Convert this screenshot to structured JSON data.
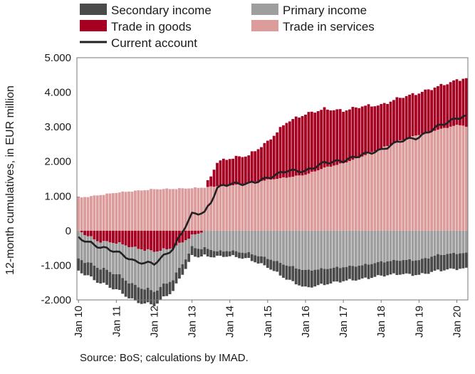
{
  "chart_data": {
    "type": "bar",
    "stacked": true,
    "ylabel": "12-month cumulatives, in EUR million",
    "ylim": [
      -2000,
      5000
    ],
    "yticks": [
      -2000,
      -1000,
      0,
      1000,
      2000,
      3000,
      4000,
      5000
    ],
    "ytick_labels": [
      "-2.000",
      "-1.000",
      "0",
      "1.000",
      "2.000",
      "3.000",
      "4.000",
      "5.000"
    ],
    "x_tick_labels": [
      "Jan 10",
      "Jan 11",
      "Jan 12",
      "Jan 13",
      "Jan 14",
      "Jan 15",
      "Jan 16",
      "Jan 17",
      "Jan 18",
      "Jan 19",
      "Jan 20"
    ],
    "grid": false,
    "legend_placement": "top",
    "months": 124,
    "anchors": {
      "months": [
        0,
        6,
        12,
        18,
        24,
        30,
        36,
        40,
        42,
        44,
        48,
        54,
        60,
        66,
        72,
        78,
        84,
        90,
        96,
        102,
        108,
        114,
        120,
        122,
        123
      ],
      "trade_in_services": [
        950,
        1020,
        1100,
        1150,
        1200,
        1210,
        1230,
        1250,
        1270,
        1290,
        1310,
        1380,
        1470,
        1540,
        1620,
        1820,
        1950,
        2150,
        2380,
        2600,
        2780,
        2920,
        3050,
        3050,
        3000
      ],
      "trade_in_goods": [
        0,
        -300,
        -350,
        -500,
        -600,
        -500,
        -150,
        0,
        300,
        700,
        780,
        800,
        1100,
        1600,
        1750,
        1700,
        1520,
        1450,
        1250,
        1250,
        1200,
        1250,
        1300,
        1350,
        1400
      ],
      "primary_income": [
        -800,
        -750,
        -900,
        -1100,
        -1150,
        -900,
        -350,
        -500,
        -550,
        -600,
        -580,
        -650,
        -800,
        -1000,
        -1150,
        -1100,
        -1050,
        -1000,
        -900,
        -850,
        -850,
        -700,
        -650,
        -650,
        -650
      ],
      "secondary_income": [
        -350,
        -420,
        -450,
        -450,
        -400,
        -330,
        -250,
        -220,
        -200,
        -150,
        -150,
        -170,
        -250,
        -400,
        -500,
        -450,
        -400,
        -400,
        -400,
        -400,
        -430,
        -450,
        -450,
        -450,
        -450
      ]
    },
    "series": [
      {
        "name": "Secondary income",
        "color": "#4a4a4a"
      },
      {
        "name": "Primary income",
        "color": "#9e9e9e"
      },
      {
        "name": "Trade in goods",
        "color": "#a50021"
      },
      {
        "name": "Trade in services",
        "color": "#dc9c9c"
      },
      {
        "name": "Current account",
        "type": "line",
        "color": "#222222"
      }
    ],
    "source": "Source: BoS; calculations by IMAD."
  }
}
